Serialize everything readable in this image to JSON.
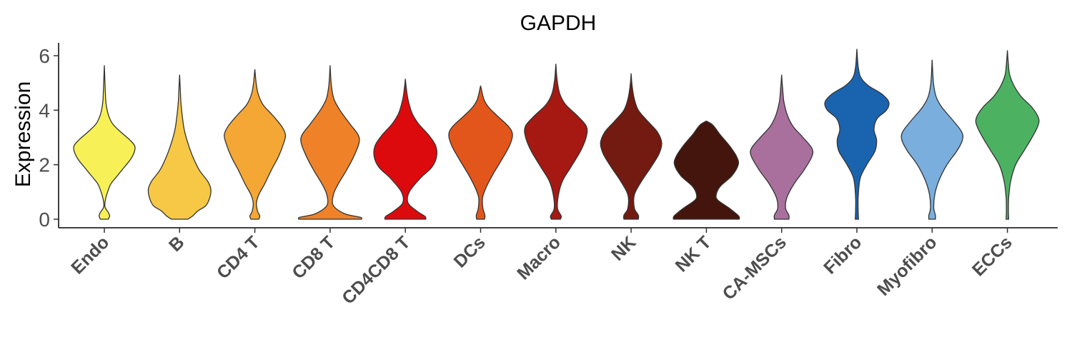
{
  "chart_data": {
    "type": "violin",
    "title": "GAPDH",
    "xlabel": "",
    "ylabel": "Expression",
    "ylim": [
      -0.3,
      6.5
    ],
    "yticks": [
      "0",
      "2",
      "4",
      "6"
    ],
    "grid": false,
    "legend": "none",
    "categories": [
      "Endo",
      "B",
      "CD4 T",
      "CD8 T",
      "CD4CD8 T",
      "DCs",
      "Macro",
      "NK",
      "NK T",
      "CA-MSCs",
      "Fibro",
      "Myofibro",
      "ECCs"
    ],
    "colors": [
      "#F7F157",
      "#F7C846",
      "#F4A735",
      "#EF8228",
      "#DD0A0D",
      "#E3561B",
      "#A51912",
      "#731A11",
      "#43150C",
      "#A9709D",
      "#1A64AF",
      "#7AAEDD",
      "#4CB262"
    ],
    "violins": [
      {
        "max": 5.65,
        "profile": [
          [
            0,
            0.12
          ],
          [
            0.12,
            0.16
          ],
          [
            0.25,
            0.12
          ],
          [
            0.45,
            0.02
          ],
          [
            0.7,
            0.03
          ],
          [
            1.0,
            0.1
          ],
          [
            1.3,
            0.2
          ],
          [
            1.6,
            0.4
          ],
          [
            1.9,
            0.6
          ],
          [
            2.2,
            0.8
          ],
          [
            2.5,
            0.92
          ],
          [
            2.7,
            0.92
          ],
          [
            2.9,
            0.78
          ],
          [
            3.2,
            0.5
          ],
          [
            3.5,
            0.25
          ],
          [
            3.8,
            0.13
          ],
          [
            4.1,
            0.07
          ],
          [
            4.4,
            0.04
          ],
          [
            5.0,
            0.02
          ],
          [
            5.65,
            0.0
          ]
        ]
      },
      {
        "max": 5.3,
        "profile": [
          [
            0,
            0.25
          ],
          [
            0.12,
            0.4
          ],
          [
            0.3,
            0.55
          ],
          [
            0.5,
            0.8
          ],
          [
            0.8,
            0.92
          ],
          [
            1.1,
            0.95
          ],
          [
            1.4,
            0.85
          ],
          [
            1.8,
            0.6
          ],
          [
            2.3,
            0.4
          ],
          [
            2.8,
            0.25
          ],
          [
            3.3,
            0.14
          ],
          [
            3.8,
            0.08
          ],
          [
            4.3,
            0.04
          ],
          [
            4.8,
            0.02
          ],
          [
            5.3,
            0.0
          ]
        ]
      },
      {
        "max": 5.5,
        "profile": [
          [
            0,
            0.12
          ],
          [
            0.12,
            0.15
          ],
          [
            0.3,
            0.08
          ],
          [
            0.6,
            0.05
          ],
          [
            0.9,
            0.12
          ],
          [
            1.3,
            0.3
          ],
          [
            1.8,
            0.5
          ],
          [
            2.3,
            0.72
          ],
          [
            2.8,
            0.88
          ],
          [
            3.1,
            0.93
          ],
          [
            3.4,
            0.82
          ],
          [
            3.8,
            0.55
          ],
          [
            4.2,
            0.25
          ],
          [
            4.6,
            0.1
          ],
          [
            5.0,
            0.04
          ],
          [
            5.5,
            0.0
          ]
        ]
      },
      {
        "max": 5.65,
        "profile": [
          [
            0,
            0.95
          ],
          [
            0.07,
            0.92
          ],
          [
            0.2,
            0.45
          ],
          [
            0.5,
            0.1
          ],
          [
            0.9,
            0.1
          ],
          [
            1.3,
            0.25
          ],
          [
            1.8,
            0.5
          ],
          [
            2.3,
            0.72
          ],
          [
            2.8,
            0.88
          ],
          [
            3.1,
            0.85
          ],
          [
            3.5,
            0.6
          ],
          [
            4.0,
            0.3
          ],
          [
            4.4,
            0.12
          ],
          [
            4.8,
            0.05
          ],
          [
            5.2,
            0.02
          ],
          [
            5.65,
            0.0
          ]
        ]
      },
      {
        "max": 5.15,
        "profile": [
          [
            0,
            0.62
          ],
          [
            0.1,
            0.6
          ],
          [
            0.3,
            0.35
          ],
          [
            0.6,
            0.08
          ],
          [
            1.0,
            0.12
          ],
          [
            1.5,
            0.45
          ],
          [
            1.9,
            0.8
          ],
          [
            2.3,
            0.95
          ],
          [
            2.7,
            0.92
          ],
          [
            3.1,
            0.7
          ],
          [
            3.5,
            0.4
          ],
          [
            3.9,
            0.2
          ],
          [
            4.4,
            0.08
          ],
          [
            4.8,
            0.03
          ],
          [
            5.15,
            0.0
          ]
        ]
      },
      {
        "max": 4.9,
        "profile": [
          [
            0,
            0.12
          ],
          [
            0.15,
            0.13
          ],
          [
            0.4,
            0.07
          ],
          [
            0.8,
            0.06
          ],
          [
            1.2,
            0.18
          ],
          [
            1.7,
            0.4
          ],
          [
            2.2,
            0.65
          ],
          [
            2.7,
            0.88
          ],
          [
            3.1,
            0.97
          ],
          [
            3.4,
            0.85
          ],
          [
            3.8,
            0.5
          ],
          [
            4.1,
            0.25
          ],
          [
            4.4,
            0.1
          ],
          [
            4.9,
            0.0
          ]
        ]
      },
      {
        "max": 5.7,
        "profile": [
          [
            0,
            0.14
          ],
          [
            0.12,
            0.16
          ],
          [
            0.4,
            0.05
          ],
          [
            0.9,
            0.08
          ],
          [
            1.4,
            0.2
          ],
          [
            1.9,
            0.45
          ],
          [
            2.5,
            0.75
          ],
          [
            3.0,
            0.92
          ],
          [
            3.4,
            0.93
          ],
          [
            3.8,
            0.65
          ],
          [
            4.2,
            0.3
          ],
          [
            4.6,
            0.12
          ],
          [
            5.1,
            0.04
          ],
          [
            5.7,
            0.0
          ]
        ]
      },
      {
        "max": 5.35,
        "profile": [
          [
            0,
            0.22
          ],
          [
            0.15,
            0.22
          ],
          [
            0.4,
            0.1
          ],
          [
            0.9,
            0.1
          ],
          [
            1.4,
            0.32
          ],
          [
            1.9,
            0.6
          ],
          [
            2.4,
            0.85
          ],
          [
            2.8,
            0.93
          ],
          [
            3.2,
            0.8
          ],
          [
            3.6,
            0.5
          ],
          [
            4.0,
            0.22
          ],
          [
            4.4,
            0.1
          ],
          [
            4.9,
            0.03
          ],
          [
            5.35,
            0.0
          ]
        ]
      },
      {
        "max": 3.6,
        "profile": [
          [
            0,
            1.0
          ],
          [
            0.12,
            0.98
          ],
          [
            0.4,
            0.7
          ],
          [
            0.7,
            0.35
          ],
          [
            0.9,
            0.3
          ],
          [
            1.2,
            0.42
          ],
          [
            1.6,
            0.78
          ],
          [
            2.0,
            0.97
          ],
          [
            2.3,
            0.92
          ],
          [
            2.7,
            0.7
          ],
          [
            3.1,
            0.42
          ],
          [
            3.45,
            0.2
          ],
          [
            3.6,
            0.0
          ]
        ]
      },
      {
        "max": 5.3,
        "profile": [
          [
            0,
            0.22
          ],
          [
            0.15,
            0.22
          ],
          [
            0.4,
            0.12
          ],
          [
            0.8,
            0.16
          ],
          [
            1.3,
            0.38
          ],
          [
            1.8,
            0.68
          ],
          [
            2.3,
            0.92
          ],
          [
            2.6,
            0.92
          ],
          [
            3.0,
            0.65
          ],
          [
            3.4,
            0.35
          ],
          [
            3.8,
            0.18
          ],
          [
            4.3,
            0.07
          ],
          [
            4.8,
            0.03
          ],
          [
            5.3,
            0.0
          ]
        ]
      },
      {
        "max": 6.25,
        "profile": [
          [
            0,
            0.05
          ],
          [
            0.3,
            0.04
          ],
          [
            0.8,
            0.04
          ],
          [
            1.5,
            0.1
          ],
          [
            2.0,
            0.3
          ],
          [
            2.5,
            0.55
          ],
          [
            2.9,
            0.6
          ],
          [
            3.3,
            0.52
          ],
          [
            3.7,
            0.62
          ],
          [
            4.0,
            0.9
          ],
          [
            4.3,
            0.97
          ],
          [
            4.6,
            0.75
          ],
          [
            4.9,
            0.35
          ],
          [
            5.2,
            0.12
          ],
          [
            5.6,
            0.04
          ],
          [
            6.25,
            0.0
          ]
        ]
      },
      {
        "max": 5.85,
        "profile": [
          [
            0,
            0.1
          ],
          [
            0.15,
            0.1
          ],
          [
            0.4,
            0.05
          ],
          [
            0.9,
            0.08
          ],
          [
            1.4,
            0.2
          ],
          [
            2.0,
            0.45
          ],
          [
            2.5,
            0.75
          ],
          [
            2.9,
            0.92
          ],
          [
            3.2,
            0.9
          ],
          [
            3.6,
            0.65
          ],
          [
            4.1,
            0.3
          ],
          [
            4.5,
            0.12
          ],
          [
            5.0,
            0.04
          ],
          [
            5.85,
            0.0
          ]
        ]
      },
      {
        "max": 6.2,
        "profile": [
          [
            0,
            0.04
          ],
          [
            0.3,
            0.03
          ],
          [
            0.8,
            0.04
          ],
          [
            1.4,
            0.1
          ],
          [
            2.0,
            0.25
          ],
          [
            2.5,
            0.5
          ],
          [
            3.0,
            0.75
          ],
          [
            3.4,
            0.92
          ],
          [
            3.7,
            0.95
          ],
          [
            4.1,
            0.75
          ],
          [
            4.5,
            0.42
          ],
          [
            4.9,
            0.2
          ],
          [
            5.3,
            0.07
          ],
          [
            5.7,
            0.03
          ],
          [
            6.2,
            0.0
          ]
        ]
      }
    ]
  }
}
